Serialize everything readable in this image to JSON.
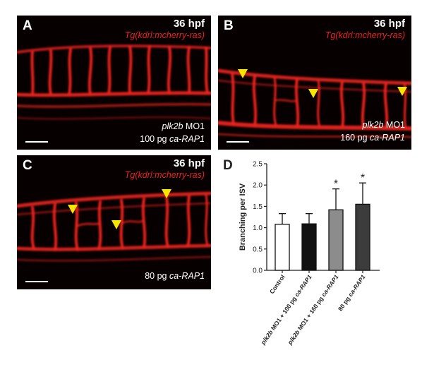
{
  "panels": [
    {
      "letter": "A",
      "stage": "36 hpf",
      "transgene": "Tg(kdrl:mcherry-ras)",
      "cond_line1": "plk2b MO1",
      "cond_line2": "100 pg ca-RAP1",
      "arrowheads": 0
    },
    {
      "letter": "B",
      "stage": "36 hpf",
      "transgene": "Tg(kdrl:mcherry-ras)",
      "cond_line1": "plk2b MO1",
      "cond_line2": "160 pg ca-RAP1",
      "arrowheads": 3
    },
    {
      "letter": "C",
      "stage": "36 hpf",
      "transgene": "Tg(kdrl:mcherry-ras)",
      "cond_line1": "",
      "cond_line2": "80 pg ca-RAP1",
      "arrowheads": 3
    }
  ],
  "colors": {
    "vessel": "#e8231f",
    "arrowhead": "#f5e600",
    "background": "#070000"
  },
  "chart_data": {
    "type": "bar",
    "panel_letter": "D",
    "title": "",
    "xlabel": "",
    "ylabel": "Branching per ISV",
    "ylim": [
      0,
      2.5
    ],
    "yticks": [
      "0.0",
      "0.5",
      "1.0",
      "1.5",
      "2.0",
      "2.5"
    ],
    "categories": [
      "Control",
      "plk2b MO1 + 100 pg ca-RAP1",
      "plk2b MO1 + 160 pg ca-RAP1",
      "80 pg ca-RAP1"
    ],
    "values": [
      1.08,
      1.09,
      1.42,
      1.55
    ],
    "errors": [
      0.25,
      0.24,
      0.49,
      0.5
    ],
    "bar_colors": [
      "#ffffff",
      "#111111",
      "#8c8c8c",
      "#3c3c3c"
    ],
    "significance": [
      "",
      "",
      "*",
      "*"
    ]
  }
}
